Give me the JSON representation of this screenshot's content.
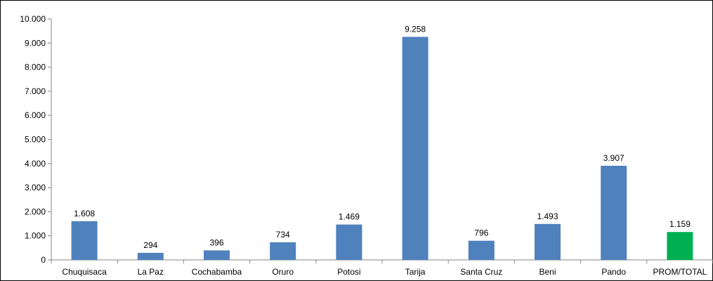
{
  "chart_data": {
    "type": "bar",
    "title": "",
    "xlabel": "",
    "ylabel": "",
    "categories": [
      "Chuquisaca",
      "La Paz",
      "Cochabamba",
      "Oruro",
      "Potosi",
      "Tarija",
      "Santa Cruz",
      "Beni",
      "Pando",
      "PROM/TOTAL"
    ],
    "values": [
      1608,
      294,
      396,
      734,
      1469,
      9258,
      796,
      1493,
      3907,
      1159
    ],
    "value_labels": [
      "1.608",
      "294",
      "396",
      "734",
      "1.469",
      "9.258",
      "796",
      "1.493",
      "3.907",
      "1.159"
    ],
    "ylim": [
      0,
      10000
    ],
    "yticks": [
      0,
      1000,
      2000,
      3000,
      4000,
      5000,
      6000,
      7000,
      8000,
      9000,
      10000
    ],
    "ytick_labels": [
      "0",
      "1.000",
      "2.000",
      "3.000",
      "4.000",
      "5.000",
      "6.000",
      "7.000",
      "8.000",
      "9.000",
      "10.000"
    ],
    "grid": false,
    "legend": "none",
    "colors": {
      "bar": "#4F81BD",
      "highlight_bar": "#00B050",
      "axis": "#868686",
      "frame": "#000000"
    },
    "highlight_categories": [
      "PROM/TOTAL"
    ]
  }
}
